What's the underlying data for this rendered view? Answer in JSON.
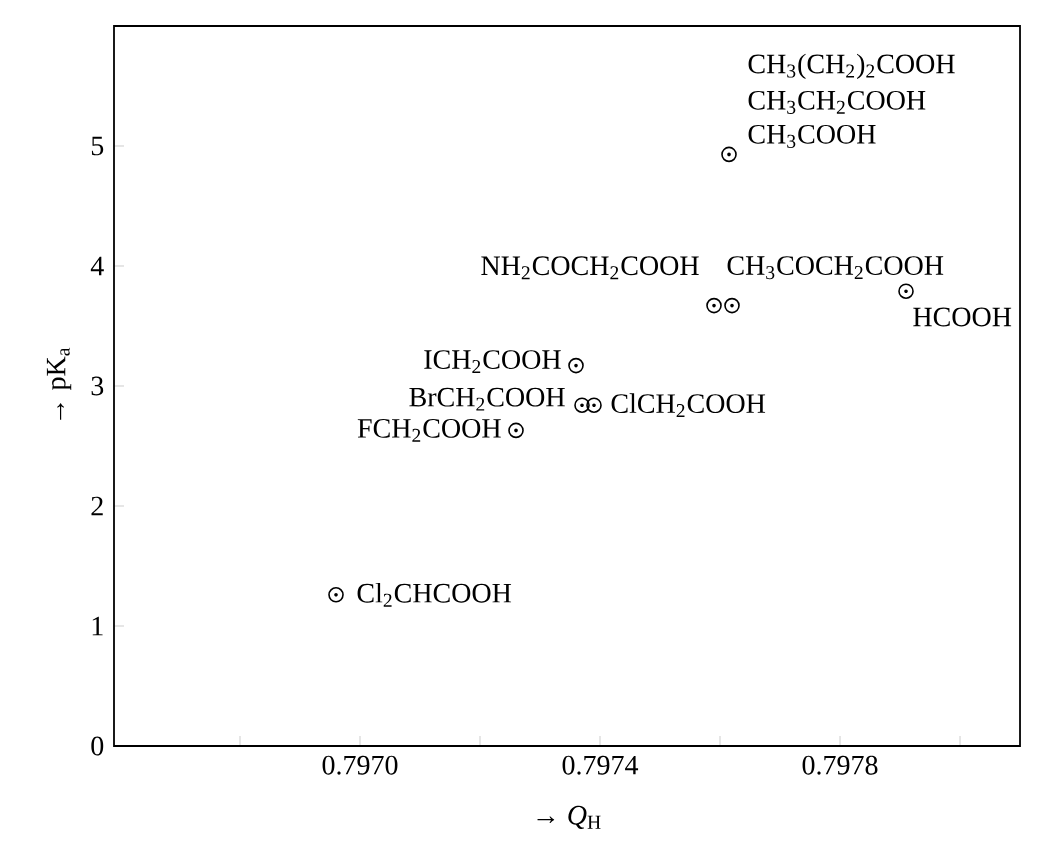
{
  "chart_data": {
    "type": "scatter",
    "xlabel": "→ *Q*$_{H}$",
    "ylabel": "→ pK$_{a}$",
    "x": [
      0.797615,
      0.79759,
      0.79762,
      0.79791,
      0.79736,
      0.79737,
      0.79739,
      0.79726,
      0.79696
    ],
    "values": [
      4.93,
      3.67,
      3.67,
      3.79,
      3.17,
      2.84,
      2.84,
      2.63,
      1.26
    ],
    "color": "#000000",
    "marker": "circle",
    "xlim": [
      0.79659,
      0.7981
    ],
    "ylim": [
      0,
      6
    ],
    "xticks": [
      {
        "value": 0.7968,
        "label": null
      },
      {
        "value": 0.797,
        "label": "0.7970"
      },
      {
        "value": 0.7972,
        "label": null
      },
      0.7974,
      {
        "value": 0.7976,
        "label": null
      },
      0.7978,
      {
        "value": 0.798,
        "label": null
      }
    ],
    "yticks": [
      0,
      1,
      2,
      3,
      4,
      5
    ],
    "annotations": [
      {
        "text": "CH$_{3}$(CH$_{2}$)$_{2}$COOH",
        "x": 0.797615,
        "y": 4.93
      },
      {
        "text": "CH$_{3}$CH$_{2}$COOH",
        "x": 0.797615,
        "y": 4.93
      },
      {
        "text": "CH$_{3}$COOH",
        "x": 0.797615,
        "y": 4.93
      },
      {
        "text": "NH$_{2}$COCH$_{2}$COOH",
        "x": 0.79759,
        "y": 3.67
      },
      {
        "text": "CH$_{3}$COCH$_{2}$COOH",
        "x": 0.79762,
        "y": 3.67
      },
      {
        "text": "HCOOH",
        "x": 0.79791,
        "y": 3.79
      },
      {
        "text": "ICH$_{2}$COOH",
        "x": 0.79736,
        "y": 3.17
      },
      {
        "text": "BrCH$_{2}$COOH",
        "x": 0.79737,
        "y": 2.84
      },
      {
        "text": "ClCH$_{2}$COOH",
        "x": 0.79739,
        "y": 2.84
      },
      {
        "text": "FCH$_{2}$COOH",
        "x": 0.79726,
        "y": 2.63
      },
      {
        "text": "Cl$_{2}$CHCOOH",
        "x": 0.79696,
        "y": 1.26
      }
    ]
  }
}
